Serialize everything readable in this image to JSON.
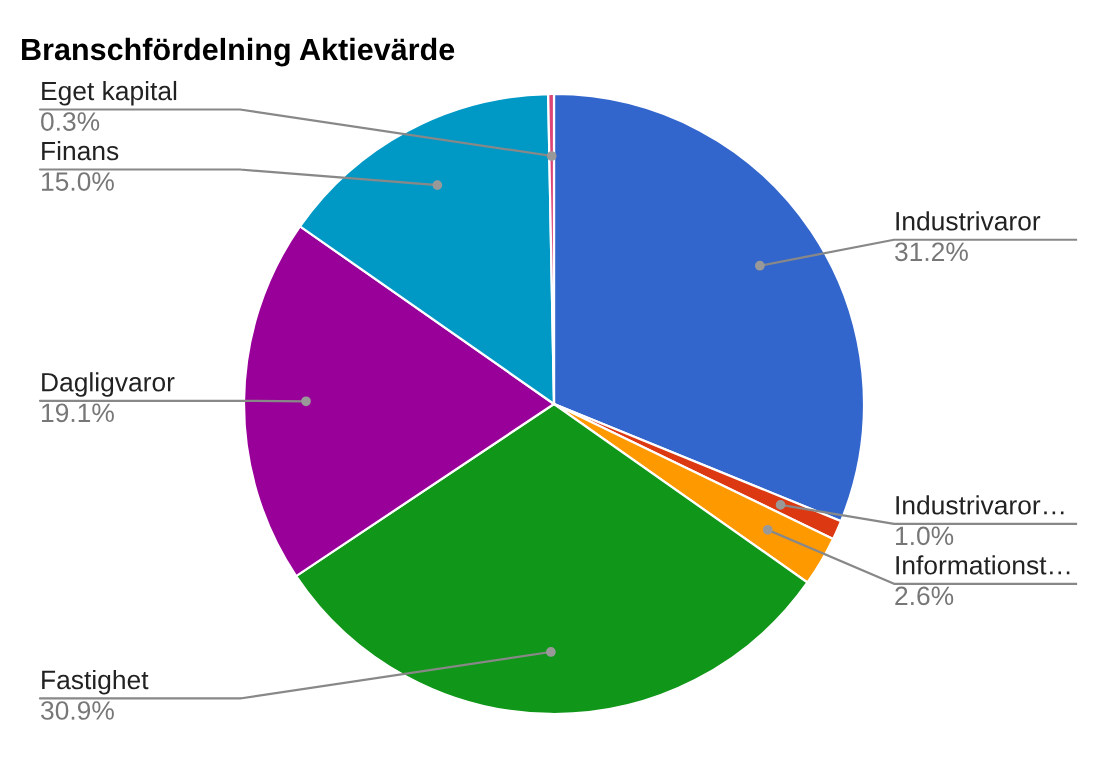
{
  "chart_data": {
    "type": "pie",
    "title": "Branschfördelning Aktievärde",
    "categories": [
      "Industrivaror",
      "Industrivaror…",
      "Informationst…",
      "Fastighet",
      "Dagligvaror",
      "Finans",
      "Eget kapital"
    ],
    "values": [
      31.2,
      1.0,
      2.6,
      30.9,
      19.1,
      15.0,
      0.3
    ],
    "colors": [
      "#3366cc",
      "#dc3912",
      "#ff9900",
      "#109618",
      "#990099",
      "#0099c6",
      "#dd4477"
    ],
    "value_labels": [
      "31.2%",
      "1.0%",
      "2.6%",
      "30.9%",
      "19.1%",
      "15.0%",
      "0.3%"
    ]
  }
}
